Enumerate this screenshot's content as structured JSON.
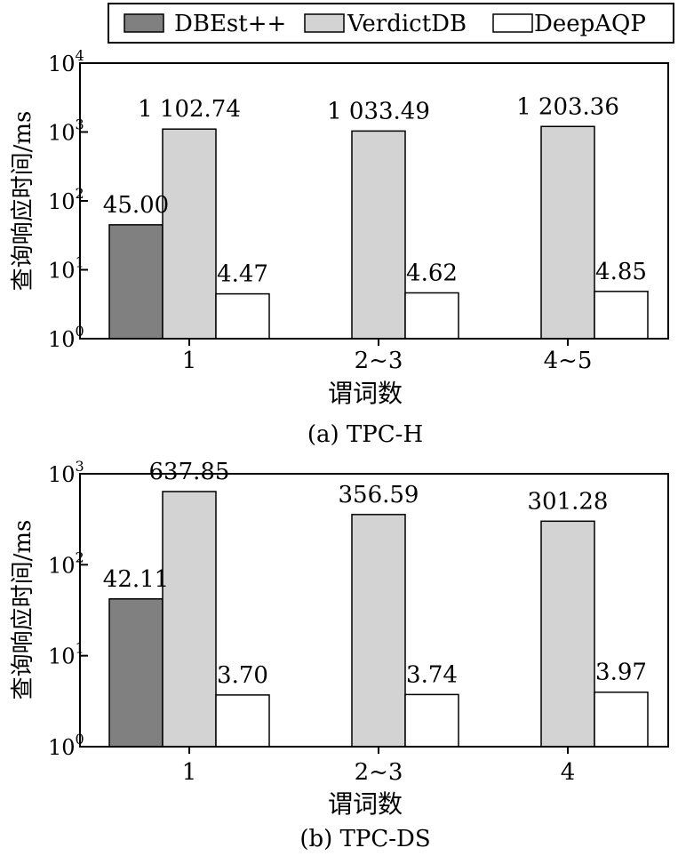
{
  "legend": {
    "placement": "top-right",
    "entries": [
      {
        "label": "DBEst++",
        "color": "#808080"
      },
      {
        "label": "VerdictDB",
        "color": "#d3d3d3"
      },
      {
        "label": "DeepAQP",
        "color": "#ffffff"
      }
    ]
  },
  "chart_data": [
    {
      "type": "bar",
      "caption": "(a) TPC-H",
      "xlabel": "谓词数",
      "ylabel": "查询响应时间/ms",
      "yscale": "log",
      "ylim": [
        1,
        10000
      ],
      "ytick_values": [
        1,
        10,
        100,
        1000,
        10000
      ],
      "ytick_bases": [
        "10",
        "10",
        "10",
        "10",
        "10"
      ],
      "ytick_exponents": [
        "0",
        "1",
        "2",
        "3",
        "4"
      ],
      "categories": [
        "1",
        "2~3",
        "4~5"
      ],
      "grid": false,
      "series": [
        {
          "name": "DBEst++",
          "values": [
            45.0,
            null,
            null
          ],
          "labels": [
            "45.00",
            "",
            ""
          ]
        },
        {
          "name": "VerdictDB",
          "values": [
            1102.74,
            1033.49,
            1203.36
          ],
          "labels": [
            "1 102.74",
            "1 033.49",
            "1 203.36"
          ]
        },
        {
          "name": "DeepAQP",
          "values": [
            4.47,
            4.62,
            4.85
          ],
          "labels": [
            "4.47",
            "4.62",
            "4.85"
          ]
        }
      ]
    },
    {
      "type": "bar",
      "caption": "(b) TPC-DS",
      "xlabel": "谓词数",
      "ylabel": "查询响应时间/ms",
      "yscale": "log",
      "ylim": [
        1,
        1000
      ],
      "ytick_values": [
        1,
        10,
        100,
        1000
      ],
      "ytick_bases": [
        "10",
        "10",
        "10",
        "10"
      ],
      "ytick_exponents": [
        "0",
        "1",
        "2",
        "3"
      ],
      "categories": [
        "1",
        "2~3",
        "4"
      ],
      "grid": false,
      "series": [
        {
          "name": "DBEst++",
          "values": [
            42.11,
            null,
            null
          ],
          "labels": [
            "42.11",
            "",
            ""
          ]
        },
        {
          "name": "VerdictDB",
          "values": [
            637.85,
            356.59,
            301.28
          ],
          "labels": [
            "637.85",
            "356.59",
            "301.28"
          ]
        },
        {
          "name": "DeepAQP",
          "values": [
            3.7,
            3.74,
            3.97
          ],
          "labels": [
            "3.70",
            "3.74",
            "3.97"
          ]
        }
      ]
    }
  ]
}
